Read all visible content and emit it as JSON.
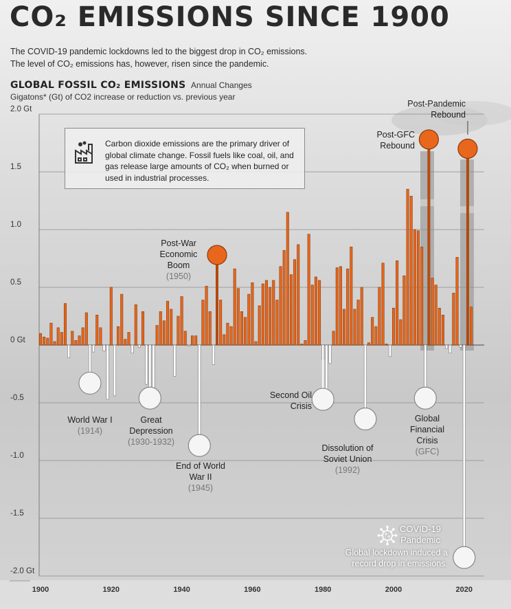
{
  "title": "CO₂ EMISSIONS SINCE 1900",
  "subtitle": [
    "The COVID-19 pandemic lockdowns led to the biggest drop in CO₂ emissions.",
    "The level of CO₂ emissions has, however, risen since the pandemic."
  ],
  "heading_main": "GLOBAL FOSSIL CO₂ EMISSIONS",
  "heading_sub": "Annual Changes",
  "units_note": "Gigatons* (Gt) of CO2 increase or reduction vs. previous year",
  "info_box_text": "Carbon dioxide emissions are the primary driver of global climate change. Fossil fuels like coal, oil, and gas release large amounts of CO₂ when burned or used in industrial processes.",
  "icons": {
    "info": "factory-icon",
    "covid": "virus-icon"
  },
  "colors": {
    "positive_bar": "#e8671c",
    "positive_bar_edge": "#8a3a0a",
    "negative_bar": "#ffffff",
    "highlight_dot": "#e8671c",
    "neutral_dot": "#f5f5f5"
  },
  "annotations": {
    "ww1": {
      "name": "World War I",
      "year": "(1914)"
    },
    "depression": {
      "name": "Great Depression",
      "year": "(1930-1932)"
    },
    "ww2": {
      "name": "End of World War II",
      "year": "(1945)"
    },
    "postwar": {
      "name": "Post-War Economic Boom",
      "year": "(1950)"
    },
    "oil": {
      "name": "Second Oil Crisis"
    },
    "soviet": {
      "name": "Dissolution of Soviet Union",
      "year": "(1992)"
    },
    "gfc": {
      "name": "Global Financial Crisis",
      "year": "(GFC)"
    },
    "postgfc": {
      "name": "Post-GFC Rebound"
    },
    "postpandemic": {
      "name": "Post-Pandemic Rebound"
    },
    "covid": {
      "name": "COVID-19 Pandemic",
      "desc": "Global lockdown induced a record drop in emissions."
    }
  },
  "chart_data": {
    "type": "bar",
    "title": "GLOBAL FOSSIL CO₂ EMISSIONS Annual Changes",
    "ylabel": "Gigatons* (Gt) of CO2 increase or reduction vs. previous year",
    "ylim": [
      -2.0,
      2.0
    ],
    "y_ticks": [
      "2.0 Gt",
      "1.5",
      "1.0",
      "0.5",
      "0 Gt",
      "-0.5",
      "-1.0",
      "-1.5",
      "-2.0 Gt"
    ],
    "x_ticks": [
      "1900",
      "1920",
      "1940",
      "1960",
      "1980",
      "2000",
      "2020"
    ],
    "grid": true,
    "x": [
      1900,
      1901,
      1902,
      1903,
      1904,
      1905,
      1906,
      1907,
      1908,
      1909,
      1910,
      1911,
      1912,
      1913,
      1914,
      1915,
      1916,
      1917,
      1918,
      1919,
      1920,
      1921,
      1922,
      1923,
      1924,
      1925,
      1926,
      1927,
      1928,
      1929,
      1930,
      1931,
      1932,
      1933,
      1934,
      1935,
      1936,
      1937,
      1938,
      1939,
      1940,
      1941,
      1942,
      1943,
      1944,
      1945,
      1946,
      1947,
      1948,
      1949,
      1950,
      1951,
      1952,
      1953,
      1954,
      1955,
      1956,
      1957,
      1958,
      1959,
      1960,
      1961,
      1962,
      1963,
      1964,
      1965,
      1966,
      1967,
      1968,
      1969,
      1970,
      1971,
      1972,
      1973,
      1974,
      1975,
      1976,
      1977,
      1978,
      1979,
      1980,
      1981,
      1982,
      1983,
      1984,
      1985,
      1986,
      1987,
      1988,
      1989,
      1990,
      1991,
      1992,
      1993,
      1994,
      1995,
      1996,
      1997,
      1998,
      1999,
      2000,
      2001,
      2002,
      2003,
      2004,
      2005,
      2006,
      2007,
      2008,
      2009,
      2010,
      2011,
      2012,
      2013,
      2014,
      2015,
      2016,
      2017,
      2018,
      2019,
      2020,
      2021,
      2022
    ],
    "values": [
      0.1,
      0.07,
      0.06,
      0.19,
      0.03,
      0.15,
      0.11,
      0.36,
      -0.11,
      0.12,
      0.04,
      0.08,
      0.15,
      0.28,
      -0.33,
      -0.06,
      0.26,
      0.15,
      -0.05,
      -0.47,
      0.5,
      -0.44,
      0.16,
      0.44,
      0.05,
      0.11,
      -0.07,
      0.35,
      -0.02,
      0.29,
      -0.34,
      -0.42,
      -0.37,
      0.17,
      0.29,
      0.21,
      0.38,
      0.31,
      -0.27,
      0.25,
      0.42,
      0.12,
      -0.01,
      0.08,
      0.08,
      -0.89,
      0.39,
      0.51,
      0.29,
      -0.17,
      0.78,
      0.39,
      0.09,
      0.19,
      0.16,
      0.66,
      0.49,
      0.29,
      0.24,
      0.44,
      0.54,
      0.03,
      0.34,
      0.53,
      0.56,
      0.5,
      0.56,
      0.39,
      0.68,
      0.82,
      1.15,
      0.61,
      0.74,
      0.87,
      0.01,
      0.04,
      0.96,
      0.52,
      0.59,
      0.56,
      -0.12,
      -0.47,
      -0.16,
      0.12,
      0.67,
      0.68,
      0.31,
      0.66,
      0.85,
      0.31,
      0.39,
      0.5,
      -0.71,
      0.02,
      0.24,
      0.16,
      0.5,
      0.71,
      0.01,
      -0.1,
      0.32,
      0.73,
      0.22,
      0.6,
      1.35,
      1.29,
      1.0,
      0.99,
      0.85,
      -0.46,
      1.78,
      0.58,
      0.52,
      0.32,
      0.26,
      -0.03,
      -0.07,
      0.45,
      0.76,
      -0.02,
      -1.87,
      1.7,
      0.33
    ]
  }
}
